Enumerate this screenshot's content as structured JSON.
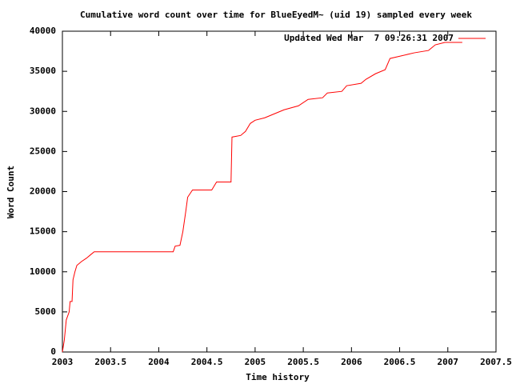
{
  "chart_data": {
    "type": "line",
    "title": "Cumulative word count over time for BlueEyedM~ (uid 19) sampled every week",
    "x_label": "Time history",
    "y_label": "Word Count",
    "x": [
      2003.0,
      2003.02,
      2003.04,
      2003.07,
      2003.08,
      2003.1,
      2003.11,
      2003.13,
      2003.15,
      2003.2,
      2003.25,
      2003.3,
      2003.33,
      2004.15,
      2004.17,
      2004.22,
      2004.25,
      2004.28,
      2004.3,
      2004.35,
      2004.55,
      2004.6,
      2004.75,
      2004.76,
      2004.85,
      2004.9,
      2004.95,
      2005.0,
      2005.1,
      2005.18,
      2005.3,
      2005.45,
      2005.55,
      2005.7,
      2005.75,
      2005.9,
      2005.95,
      2006.1,
      2006.15,
      2006.25,
      2006.35,
      2006.4,
      2006.65,
      2006.8,
      2006.87,
      2006.97,
      2007.15
    ],
    "series": [
      {
        "name": "Updated Wed Mar  7 09:26:31 2007",
        "color": "#ff0000",
        "values": [
          0,
          1500,
          4000,
          5000,
          6300,
          6300,
          9000,
          10000,
          10800,
          11300,
          11700,
          12200,
          12500,
          12500,
          13200,
          13300,
          15000,
          17500,
          19300,
          20200,
          20200,
          21200,
          21200,
          26800,
          27000,
          27500,
          28500,
          28900,
          29200,
          29600,
          30200,
          30700,
          31500,
          31700,
          32300,
          32500,
          33200,
          33500,
          34000,
          34700,
          35200,
          36600,
          37300,
          37600,
          38300,
          38600,
          38600
        ]
      }
    ],
    "xlim": [
      2003,
      2007.5
    ],
    "xticks": [
      2003,
      2003.5,
      2004,
      2004.5,
      2005,
      2005.5,
      2006,
      2006.5,
      2007,
      2007.5
    ],
    "ylim": [
      0,
      40000
    ],
    "yticks": [
      0,
      5000,
      10000,
      15000,
      20000,
      25000,
      30000,
      35000,
      40000
    ],
    "legend": "top-right"
  }
}
